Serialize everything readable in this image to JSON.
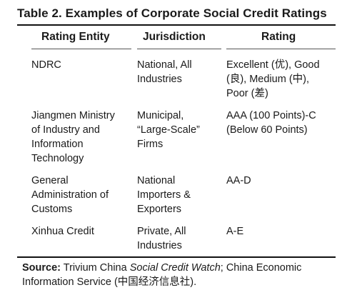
{
  "title": "Table 2. Examples of Corporate Social Credit Ratings",
  "headers": {
    "entity": "Rating Entity",
    "jurisdiction": "Jurisdiction",
    "rating": "Rating"
  },
  "rows": [
    {
      "entity": "NDRC",
      "jurisdiction": "National, All\nIndustries",
      "rating": "Excellent (优), Good\n(良), Medium (中),\nPoor (差)"
    },
    {
      "entity": "Jiangmen Ministry\nof Industry and\nInformation\nTechnology",
      "jurisdiction": "Municipal,\n“Large-Scale”\nFirms",
      "rating": "AAA (100 Points)-C\n(Below 60 Points)"
    },
    {
      "entity": "General\nAdministration of\nCustoms",
      "jurisdiction": "National\nImporters &\nExporters",
      "rating": "AA-D"
    },
    {
      "entity": "Xinhua Credit",
      "jurisdiction": "Private, All\nIndustries",
      "rating": "A-E"
    }
  ],
  "source": {
    "label": "Source:",
    "text_before": " Trivium China ",
    "italic": "Social Credit Watch",
    "text_after": "; China Economic Information Service (中国经济信息社)."
  }
}
